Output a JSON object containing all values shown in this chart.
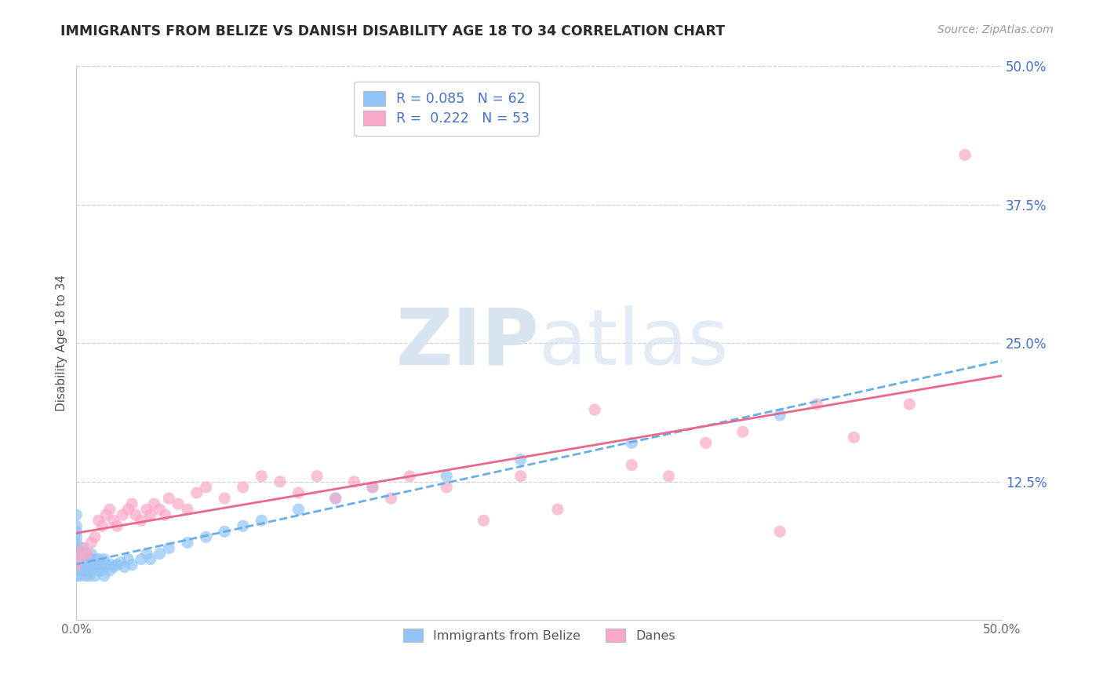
{
  "title": "IMMIGRANTS FROM BELIZE VS DANISH DISABILITY AGE 18 TO 34 CORRELATION CHART",
  "source": "Source: ZipAtlas.com",
  "ylabel": "Disability Age 18 to 34",
  "xlim": [
    0.0,
    0.5
  ],
  "ylim": [
    0.0,
    0.5
  ],
  "yticks": [
    0.0,
    0.125,
    0.25,
    0.375,
    0.5
  ],
  "ytick_labels": [
    "",
    "12.5%",
    "25.0%",
    "37.5%",
    "50.0%"
  ],
  "legend_label1": "Immigrants from Belize",
  "legend_label2": "Danes",
  "R1": 0.085,
  "N1": 62,
  "R2": 0.222,
  "N2": 53,
  "color_blue": "#92C5F7",
  "color_pink": "#F9A8C9",
  "color_blue_line": "#6AAEE8",
  "color_pink_line": "#E8698A",
  "color_blue_text": "#4472C4",
  "watermark_color": "#D8E4F0",
  "grid_color": "#C8D4E0",
  "background_color": "#FFFFFF",
  "blue_scatter_x": [
    0.0,
    0.0,
    0.0,
    0.0,
    0.0,
    0.0,
    0.0,
    0.0,
    0.0,
    0.0,
    0.002,
    0.002,
    0.003,
    0.003,
    0.003,
    0.004,
    0.004,
    0.005,
    0.005,
    0.005,
    0.006,
    0.006,
    0.007,
    0.007,
    0.008,
    0.008,
    0.009,
    0.01,
    0.01,
    0.011,
    0.012,
    0.012,
    0.013,
    0.014,
    0.015,
    0.015,
    0.016,
    0.018,
    0.019,
    0.02,
    0.022,
    0.024,
    0.026,
    0.028,
    0.03,
    0.035,
    0.038,
    0.04,
    0.045,
    0.05,
    0.06,
    0.07,
    0.08,
    0.09,
    0.1,
    0.12,
    0.14,
    0.16,
    0.2,
    0.24,
    0.3,
    0.38
  ],
  "blue_scatter_y": [
    0.04,
    0.05,
    0.055,
    0.06,
    0.065,
    0.07,
    0.075,
    0.08,
    0.085,
    0.095,
    0.04,
    0.05,
    0.045,
    0.055,
    0.065,
    0.05,
    0.06,
    0.04,
    0.05,
    0.06,
    0.045,
    0.055,
    0.04,
    0.055,
    0.045,
    0.06,
    0.05,
    0.04,
    0.055,
    0.05,
    0.045,
    0.055,
    0.05,
    0.045,
    0.04,
    0.055,
    0.05,
    0.045,
    0.05,
    0.048,
    0.05,
    0.052,
    0.048,
    0.055,
    0.05,
    0.055,
    0.06,
    0.055,
    0.06,
    0.065,
    0.07,
    0.075,
    0.08,
    0.085,
    0.09,
    0.1,
    0.11,
    0.12,
    0.13,
    0.145,
    0.16,
    0.185
  ],
  "pink_scatter_x": [
    0.0,
    0.0,
    0.002,
    0.004,
    0.006,
    0.008,
    0.01,
    0.012,
    0.014,
    0.016,
    0.018,
    0.02,
    0.022,
    0.025,
    0.028,
    0.03,
    0.032,
    0.035,
    0.038,
    0.04,
    0.042,
    0.045,
    0.048,
    0.05,
    0.055,
    0.06,
    0.065,
    0.07,
    0.08,
    0.09,
    0.1,
    0.11,
    0.12,
    0.13,
    0.14,
    0.15,
    0.16,
    0.17,
    0.18,
    0.2,
    0.22,
    0.24,
    0.26,
    0.28,
    0.3,
    0.32,
    0.34,
    0.36,
    0.38,
    0.4,
    0.42,
    0.45,
    0.48
  ],
  "pink_scatter_y": [
    0.05,
    0.06,
    0.055,
    0.065,
    0.06,
    0.07,
    0.075,
    0.09,
    0.085,
    0.095,
    0.1,
    0.09,
    0.085,
    0.095,
    0.1,
    0.105,
    0.095,
    0.09,
    0.1,
    0.095,
    0.105,
    0.1,
    0.095,
    0.11,
    0.105,
    0.1,
    0.115,
    0.12,
    0.11,
    0.12,
    0.13,
    0.125,
    0.115,
    0.13,
    0.11,
    0.125,
    0.12,
    0.11,
    0.13,
    0.12,
    0.09,
    0.13,
    0.1,
    0.19,
    0.14,
    0.13,
    0.16,
    0.17,
    0.08,
    0.195,
    0.165,
    0.195,
    0.42
  ]
}
